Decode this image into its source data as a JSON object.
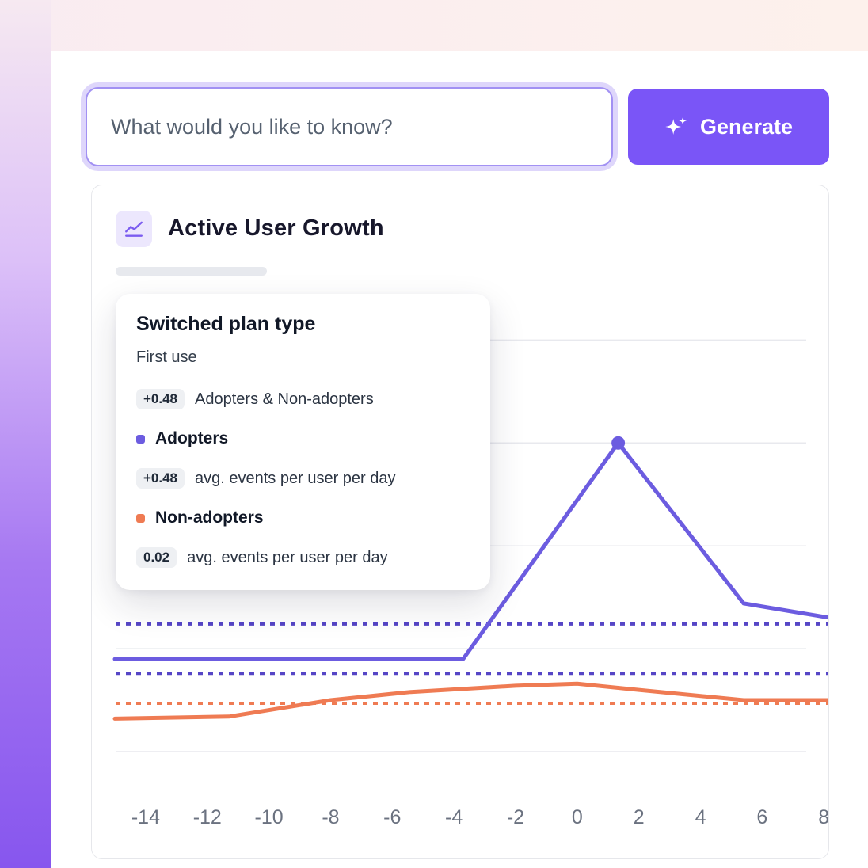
{
  "query_bar": {
    "placeholder": "What would you like to know?",
    "generate_label": "Generate"
  },
  "card": {
    "title": "Active User Growth",
    "tooltip": {
      "title": "Switched plan type",
      "subtitle": "First use",
      "rows": [
        {
          "badge": "+0.48",
          "label": "Adopters & Non-adopters"
        },
        {
          "bullet_color": "#6c5ce0",
          "label": "Adopters"
        },
        {
          "badge": "+0.48",
          "label": "avg. events per user per day"
        },
        {
          "bullet_color": "#ef7b53",
          "label": "Non-adopters"
        },
        {
          "badge": "0.02",
          "label": "avg. events per user per day"
        }
      ]
    }
  },
  "colors": {
    "accent_purple": "#7a55f7",
    "line_purple": "#6c5ce0",
    "dashed_purple": "#5646c6",
    "orange": "#ef7b53",
    "grid": "#e8e9ee",
    "tick_text": "#6b7280"
  },
  "chart_data": {
    "type": "line",
    "title": "Active User Growth",
    "xlabel": "",
    "ylabel": "",
    "x_ticks": [
      -14,
      -12,
      -10,
      -8,
      -6,
      -4,
      -2,
      0,
      2,
      4,
      6,
      8
    ],
    "xlim": [
      -15,
      8.2
    ],
    "ylim": [
      0,
      2.04
    ],
    "gridlines_y": [
      0,
      0.5,
      1.0,
      1.5,
      2.0
    ],
    "grid": true,
    "series": [
      {
        "name": "Adopters",
        "color": "#6c5ce0",
        "points": [
          [
            -15,
            0.45
          ],
          [
            -3.7,
            0.45
          ],
          [
            1.33,
            1.5
          ],
          [
            5.4,
            0.72
          ],
          [
            8.2,
            0.65
          ]
        ]
      },
      {
        "name": "Non-adopters",
        "color": "#ef7b53",
        "points": [
          [
            -15,
            0.16
          ],
          [
            -11.3,
            0.17
          ],
          [
            -8,
            0.25
          ],
          [
            -5.4,
            0.29
          ],
          [
            -2,
            0.32
          ],
          [
            0,
            0.33
          ],
          [
            2,
            0.3
          ],
          [
            5.4,
            0.25
          ],
          [
            8.2,
            0.25
          ]
        ]
      }
    ],
    "avg_lines": [
      {
        "name": "Adopters & Non-adopters avg (+0.48)",
        "color": "#5646c6",
        "value": 0.62
      },
      {
        "name": "Adopters avg (+0.48)",
        "color": "#5646c6",
        "value": 0.38
      },
      {
        "name": "Non-adopters avg (0.02)",
        "color": "#ef7b53",
        "value": 0.235
      }
    ],
    "marker": {
      "series": "Adopters",
      "x": 1.33,
      "y": 1.5,
      "color": "#6c5ce0"
    }
  }
}
